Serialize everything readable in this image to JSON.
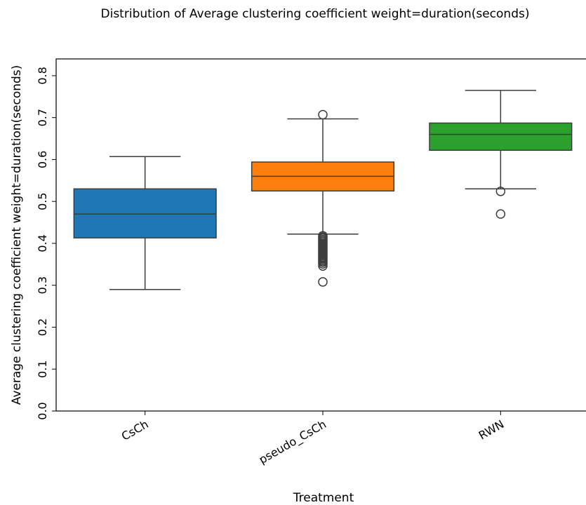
{
  "chart_data": {
    "type": "box",
    "title": "Distribution of Average clustering coefficient weight=duration(seconds)",
    "xlabel": "Treatment",
    "ylabel": "Average clustering coefficient weight=duration(seconds)",
    "ylim": [
      0.0,
      0.84
    ],
    "yticks": [
      "0.0",
      "0.1",
      "0.2",
      "0.3",
      "0.4",
      "0.5",
      "0.6",
      "0.7",
      "0.8"
    ],
    "grid": false,
    "categories": [
      "CsCh",
      "pseudo_CsCh",
      "RWN"
    ],
    "boxes": [
      {
        "name": "CsCh",
        "color": "#1f77b4",
        "whislo": 0.29,
        "q1": 0.413,
        "med": 0.47,
        "q3": 0.53,
        "whishi": 0.607,
        "fliers": []
      },
      {
        "name": "pseudo_CsCh",
        "color": "#ff7f0e",
        "whislo": 0.422,
        "q1": 0.525,
        "med": 0.56,
        "q3": 0.594,
        "whishi": 0.697,
        "fliers": [
          0.707,
          0.418,
          0.415,
          0.412,
          0.409,
          0.406,
          0.403,
          0.4,
          0.397,
          0.394,
          0.391,
          0.388,
          0.385,
          0.382,
          0.379,
          0.376,
          0.373,
          0.37,
          0.367,
          0.364,
          0.361,
          0.358,
          0.355,
          0.351,
          0.346,
          0.308
        ]
      },
      {
        "name": "RWN",
        "color": "#2ca02c",
        "whislo": 0.53,
        "q1": 0.622,
        "med": 0.66,
        "q3": 0.687,
        "whishi": 0.765,
        "fliers": [
          0.524,
          0.47
        ]
      }
    ]
  }
}
